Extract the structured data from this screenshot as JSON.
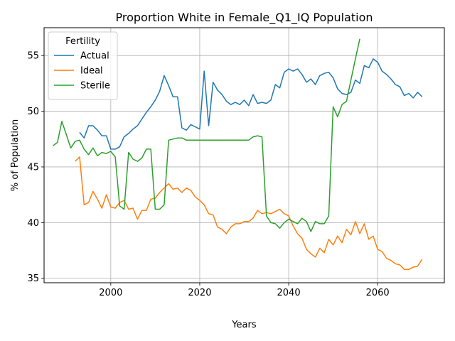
{
  "chart_data": {
    "type": "line",
    "title": "Proportion White in Female_Q1_IQ Population",
    "xlabel": "Years",
    "ylabel": "% of Population",
    "xlim": [
      1985,
      2075
    ],
    "ylim": [
      34.6,
      57.5
    ],
    "xticks": [
      2000,
      2020,
      2040,
      2060
    ],
    "yticks": [
      35,
      40,
      45,
      50,
      55
    ],
    "grid": true,
    "legend": {
      "title": "Fertility",
      "placement": "top-left"
    },
    "series": [
      {
        "name": "Actual",
        "color": "#1f77b4",
        "x": [
          1993,
          1994,
          1995,
          1996,
          1997,
          1998,
          1999,
          2000,
          2001,
          2002,
          2003,
          2004,
          2005,
          2006,
          2007,
          2008,
          2009,
          2010,
          2011,
          2012,
          2013,
          2014,
          2015,
          2016,
          2017,
          2018,
          2019,
          2020,
          2021,
          2022,
          2023,
          2024,
          2025,
          2026,
          2027,
          2028,
          2029,
          2030,
          2031,
          2032,
          2033,
          2034,
          2035,
          2036,
          2037,
          2038,
          2039,
          2040,
          2041,
          2042,
          2043,
          2044,
          2045,
          2046,
          2047,
          2048,
          2049,
          2050,
          2051,
          2052,
          2053,
          2054,
          2055,
          2056,
          2057,
          2058,
          2059,
          2060,
          2061,
          2062,
          2063,
          2064,
          2065,
          2066,
          2067,
          2068,
          2069,
          2070
        ],
        "values": [
          48.1,
          47.6,
          48.7,
          48.7,
          48.3,
          47.8,
          47.8,
          46.6,
          46.6,
          46.8,
          47.7,
          48.0,
          48.4,
          48.7,
          49.3,
          49.9,
          50.4,
          51.0,
          51.8,
          53.2,
          52.3,
          51.3,
          51.3,
          48.5,
          48.3,
          48.8,
          48.6,
          48.4,
          53.6,
          48.7,
          52.6,
          51.9,
          51.5,
          50.9,
          50.6,
          50.8,
          50.6,
          51.0,
          50.5,
          51.5,
          50.7,
          50.8,
          50.7,
          51.0,
          52.4,
          52.1,
          53.5,
          53.8,
          53.6,
          53.8,
          53.3,
          52.6,
          52.9,
          52.4,
          53.2,
          53.4,
          53.5,
          53.0,
          52.0,
          51.6,
          51.5,
          51.7,
          52.8,
          52.5,
          54.1,
          53.9,
          54.7,
          54.4,
          53.6,
          53.3,
          52.9,
          52.4,
          52.2,
          51.4,
          51.6,
          51.2,
          51.7,
          51.3
        ]
      },
      {
        "name": "Ideal",
        "color": "#ff7f0e",
        "x": [
          1992,
          1993,
          1994,
          1995,
          1996,
          1997,
          1998,
          1999,
          2000,
          2001,
          2002,
          2003,
          2004,
          2005,
          2006,
          2007,
          2008,
          2009,
          2010,
          2011,
          2012,
          2013,
          2014,
          2015,
          2016,
          2017,
          2018,
          2019,
          2020,
          2021,
          2022,
          2023,
          2024,
          2025,
          2026,
          2027,
          2028,
          2029,
          2030,
          2031,
          2032,
          2033,
          2034,
          2035,
          2036,
          2037,
          2038,
          2039,
          2040,
          2041,
          2042,
          2043,
          2044,
          2045,
          2046,
          2047,
          2048,
          2049,
          2050,
          2051,
          2052,
          2053,
          2054,
          2055,
          2056,
          2057,
          2058,
          2059,
          2060,
          2061,
          2062,
          2063,
          2064,
          2065,
          2066,
          2067,
          2068,
          2069,
          2070
        ],
        "values": [
          45.5,
          45.9,
          41.6,
          41.8,
          42.8,
          42.1,
          41.3,
          42.5,
          41.4,
          41.3,
          41.8,
          42.0,
          41.2,
          41.3,
          40.3,
          41.1,
          41.1,
          42.1,
          42.2,
          42.7,
          43.1,
          43.5,
          43.0,
          43.1,
          42.7,
          43.1,
          42.9,
          42.3,
          42.0,
          41.6,
          40.8,
          40.7,
          39.6,
          39.4,
          39.0,
          39.6,
          39.9,
          39.9,
          40.1,
          40.1,
          40.4,
          41.1,
          40.8,
          40.9,
          40.8,
          41.0,
          41.2,
          40.8,
          40.6,
          39.7,
          39.0,
          38.6,
          37.6,
          37.2,
          36.9,
          37.7,
          37.3,
          38.5,
          38.0,
          38.8,
          38.2,
          39.4,
          38.9,
          40.1,
          39.0,
          39.9,
          38.5,
          38.8,
          37.6,
          37.4,
          36.8,
          36.6,
          36.3,
          36.2,
          35.8,
          35.8,
          36.0,
          36.1,
          36.7
        ]
      },
      {
        "name": "Sterile",
        "color": "#2ca02c",
        "x": [
          1987,
          1988,
          1989,
          1990,
          1991,
          1992,
          1993,
          1994,
          1995,
          1996,
          1997,
          1998,
          1999,
          2000,
          2001,
          2002,
          2003,
          2004,
          2005,
          2006,
          2007,
          2008,
          2009,
          2010,
          2011,
          2012,
          2013,
          2014,
          2015,
          2016,
          2017,
          2018,
          2019,
          2020,
          2021,
          2022,
          2023,
          2024,
          2025,
          2026,
          2027,
          2028,
          2029,
          2030,
          2031,
          2032,
          2033,
          2034,
          2035,
          2036,
          2037,
          2038,
          2039,
          2040,
          2041,
          2042,
          2043,
          2044,
          2045,
          2046,
          2047,
          2048,
          2049,
          2050,
          2051,
          2052,
          2053,
          2054,
          2055,
          2056
        ],
        "values": [
          46.9,
          47.2,
          49.1,
          47.9,
          46.7,
          47.3,
          47.4,
          46.6,
          46.1,
          46.7,
          46.0,
          46.3,
          46.2,
          46.4,
          45.9,
          41.5,
          41.2,
          46.3,
          45.7,
          45.5,
          45.8,
          46.6,
          46.6,
          41.2,
          41.2,
          41.6,
          47.4,
          47.5,
          47.6,
          47.6,
          47.4,
          47.4,
          47.4,
          47.4,
          47.4,
          47.4,
          47.4,
          47.4,
          47.4,
          47.4,
          47.4,
          47.4,
          47.4,
          47.4,
          47.4,
          47.7,
          47.8,
          47.7,
          40.6,
          40.0,
          39.9,
          39.5,
          40.0,
          40.3,
          40.1,
          39.9,
          40.4,
          40.1,
          39.2,
          40.1,
          39.9,
          39.9,
          40.6,
          50.4,
          49.5,
          50.6,
          50.9,
          52.8,
          54.7,
          56.5
        ]
      }
    ]
  }
}
